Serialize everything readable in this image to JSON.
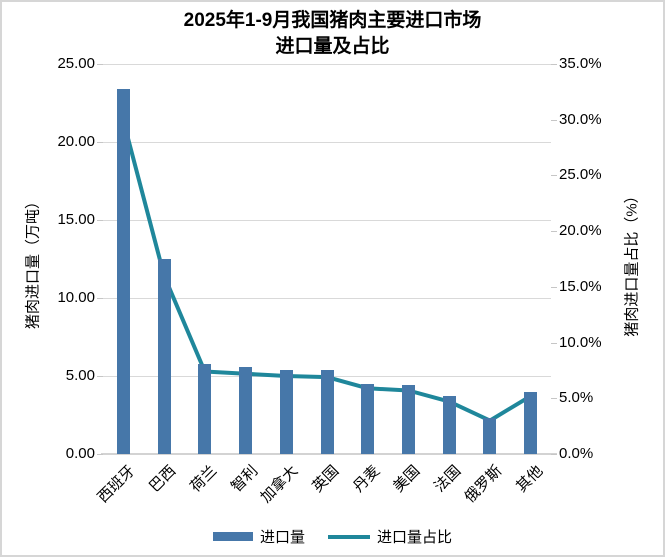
{
  "colors": {
    "bar": "#4677A9",
    "line": "#1F879B",
    "grid": "#D9D9D9",
    "axis_line": "#D3D3D3",
    "text": "#000000"
  },
  "chart_data": {
    "type": "bar",
    "subtype": "combo-bar-line",
    "title_line1": "2025年1-9月我国猪肉主要进口市场",
    "title_line2": "进口量及占比",
    "categories": [
      "西班牙",
      "巴西",
      "荷兰",
      "智利",
      "加拿大",
      "英国",
      "丹麦",
      "美国",
      "法国",
      "俄罗斯",
      "其他"
    ],
    "series": [
      {
        "name": "进口量",
        "type": "bar",
        "axis": "left",
        "color": "#4677A9",
        "values": [
          23.4,
          12.5,
          5.8,
          5.6,
          5.4,
          5.4,
          4.5,
          4.4,
          3.7,
          2.3,
          4.0
        ]
      },
      {
        "name": "进口量占比",
        "type": "line",
        "axis": "right",
        "color": "#1F879B",
        "values": [
          29.9,
          16.0,
          7.4,
          7.2,
          7.0,
          6.9,
          5.9,
          5.7,
          4.7,
          3.0,
          5.2
        ]
      }
    ],
    "left_axis": {
      "title": "猪肉进口量（万吨）",
      "min": 0,
      "max": 25,
      "step": 5,
      "tick_labels": [
        "0.00",
        "5.00",
        "10.00",
        "15.00",
        "20.00",
        "25.00"
      ]
    },
    "right_axis": {
      "title": "猪肉进口量占比（%）",
      "min": 0,
      "max": 35,
      "step": 5,
      "tick_labels": [
        "0.0%",
        "5.0%",
        "10.0%",
        "15.0%",
        "20.0%",
        "25.0%",
        "30.0%",
        "35.0%"
      ]
    },
    "legend": {
      "position": "bottom",
      "entries": [
        "进口量",
        "进口量占比"
      ]
    },
    "grid": "horizontal-only"
  }
}
